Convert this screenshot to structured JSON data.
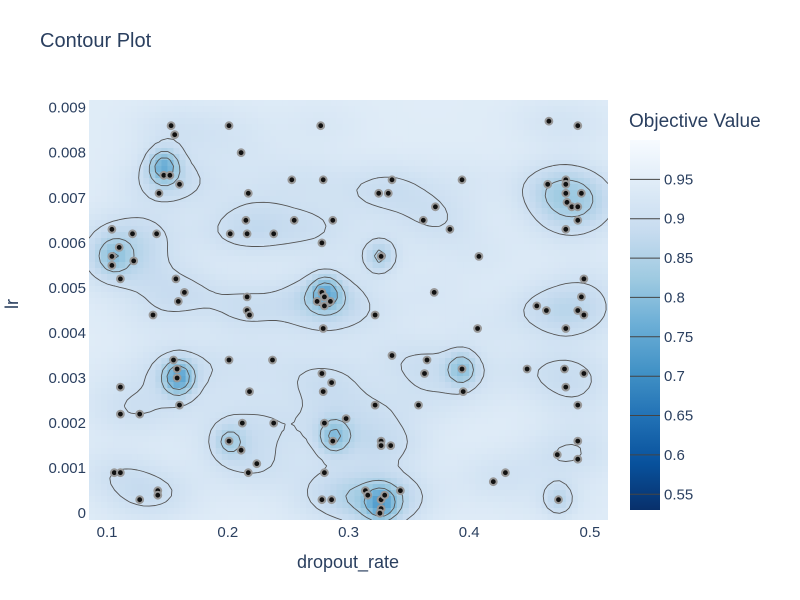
{
  "chart_data": {
    "type": "contour",
    "title": "Contour Plot",
    "xlabel": "dropout_rate",
    "ylabel": "lr",
    "xlim": [
      0.085,
      0.515
    ],
    "ylim": [
      -0.00015,
      0.00917
    ],
    "x_ticks": [
      {
        "value": 0.1,
        "label": "0.1"
      },
      {
        "value": 0.2,
        "label": "0.2"
      },
      {
        "value": 0.3,
        "label": "0.3"
      },
      {
        "value": 0.4,
        "label": "0.4"
      },
      {
        "value": 0.5,
        "label": "0.5"
      }
    ],
    "y_ticks": [
      {
        "value": 0,
        "label": "0"
      },
      {
        "value": 0.001,
        "label": "0.001"
      },
      {
        "value": 0.002,
        "label": "0.002"
      },
      {
        "value": 0.003,
        "label": "0.003"
      },
      {
        "value": 0.004,
        "label": "0.004"
      },
      {
        "value": 0.005,
        "label": "0.005"
      },
      {
        "value": 0.006,
        "label": "0.006"
      },
      {
        "value": 0.007,
        "label": "0.007"
      },
      {
        "value": 0.008,
        "label": "0.008"
      },
      {
        "value": 0.009,
        "label": "0.009"
      }
    ],
    "colorbar": {
      "title": "Objective Value",
      "colorscale": "Blues",
      "range": [
        0.53,
        1.0
      ],
      "ticks": [
        0.95,
        0.9,
        0.85,
        0.8,
        0.75,
        0.7,
        0.65,
        0.6,
        0.55
      ],
      "tick_labels": [
        "0.95",
        "0.9",
        "0.85",
        "0.8",
        "0.75",
        "0.7",
        "0.65",
        "0.6",
        "0.55"
      ]
    },
    "trials": [
      {
        "x": 0.153,
        "y": 0.0086
      },
      {
        "x": 0.156,
        "y": 0.0084
      },
      {
        "x": 0.201,
        "y": 0.0086
      },
      {
        "x": 0.277,
        "y": 0.0086
      },
      {
        "x": 0.466,
        "y": 0.0087
      },
      {
        "x": 0.49,
        "y": 0.0086
      },
      {
        "x": 0.211,
        "y": 0.008
      },
      {
        "x": 0.147,
        "y": 0.0075
      },
      {
        "x": 0.152,
        "y": 0.0075
      },
      {
        "x": 0.16,
        "y": 0.0073
      },
      {
        "x": 0.143,
        "y": 0.0071
      },
      {
        "x": 0.217,
        "y": 0.0071
      },
      {
        "x": 0.253,
        "y": 0.0074
      },
      {
        "x": 0.279,
        "y": 0.0074
      },
      {
        "x": 0.325,
        "y": 0.0071
      },
      {
        "x": 0.333,
        "y": 0.0071
      },
      {
        "x": 0.336,
        "y": 0.0074
      },
      {
        "x": 0.394,
        "y": 0.0074
      },
      {
        "x": 0.465,
        "y": 0.0073
      },
      {
        "x": 0.48,
        "y": 0.0074
      },
      {
        "x": 0.48,
        "y": 0.0073
      },
      {
        "x": 0.48,
        "y": 0.0071
      },
      {
        "x": 0.481,
        "y": 0.0069
      },
      {
        "x": 0.485,
        "y": 0.0068
      },
      {
        "x": 0.49,
        "y": 0.0068
      },
      {
        "x": 0.493,
        "y": 0.0071
      },
      {
        "x": 0.372,
        "y": 0.0068
      },
      {
        "x": 0.362,
        "y": 0.0065
      },
      {
        "x": 0.255,
        "y": 0.0065
      },
      {
        "x": 0.287,
        "y": 0.0065
      },
      {
        "x": 0.215,
        "y": 0.0065
      },
      {
        "x": 0.49,
        "y": 0.0065
      },
      {
        "x": 0.104,
        "y": 0.0063
      },
      {
        "x": 0.121,
        "y": 0.0062
      },
      {
        "x": 0.141,
        "y": 0.0062
      },
      {
        "x": 0.202,
        "y": 0.0062
      },
      {
        "x": 0.216,
        "y": 0.0062
      },
      {
        "x": 0.238,
        "y": 0.0062
      },
      {
        "x": 0.384,
        "y": 0.0063
      },
      {
        "x": 0.48,
        "y": 0.0063
      },
      {
        "x": 0.11,
        "y": 0.0059
      },
      {
        "x": 0.278,
        "y": 0.006
      },
      {
        "x": 0.104,
        "y": 0.0057
      },
      {
        "x": 0.104,
        "y": 0.0055
      },
      {
        "x": 0.122,
        "y": 0.0056
      },
      {
        "x": 0.327,
        "y": 0.0057
      },
      {
        "x": 0.408,
        "y": 0.0057
      },
      {
        "x": 0.111,
        "y": 0.0052
      },
      {
        "x": 0.157,
        "y": 0.0052
      },
      {
        "x": 0.495,
        "y": 0.0052
      },
      {
        "x": 0.164,
        "y": 0.0049
      },
      {
        "x": 0.159,
        "y": 0.0047
      },
      {
        "x": 0.216,
        "y": 0.0048
      },
      {
        "x": 0.278,
        "y": 0.0049
      },
      {
        "x": 0.28,
        "y": 0.0048
      },
      {
        "x": 0.274,
        "y": 0.0047
      },
      {
        "x": 0.285,
        "y": 0.0047
      },
      {
        "x": 0.28,
        "y": 0.0046
      },
      {
        "x": 0.371,
        "y": 0.0049
      },
      {
        "x": 0.493,
        "y": 0.0048
      },
      {
        "x": 0.456,
        "y": 0.0046
      },
      {
        "x": 0.464,
        "y": 0.0045
      },
      {
        "x": 0.216,
        "y": 0.0045
      },
      {
        "x": 0.218,
        "y": 0.0044
      },
      {
        "x": 0.49,
        "y": 0.0045
      },
      {
        "x": 0.495,
        "y": 0.0044
      },
      {
        "x": 0.138,
        "y": 0.0044
      },
      {
        "x": 0.322,
        "y": 0.0044
      },
      {
        "x": 0.279,
        "y": 0.0041
      },
      {
        "x": 0.407,
        "y": 0.0041
      },
      {
        "x": 0.48,
        "y": 0.0041
      },
      {
        "x": 0.237,
        "y": 0.0034
      },
      {
        "x": 0.201,
        "y": 0.0034
      },
      {
        "x": 0.155,
        "y": 0.0034
      },
      {
        "x": 0.336,
        "y": 0.0035
      },
      {
        "x": 0.365,
        "y": 0.0034
      },
      {
        "x": 0.363,
        "y": 0.0031
      },
      {
        "x": 0.158,
        "y": 0.0032
      },
      {
        "x": 0.278,
        "y": 0.0031
      },
      {
        "x": 0.158,
        "y": 0.003
      },
      {
        "x": 0.394,
        "y": 0.0032
      },
      {
        "x": 0.448,
        "y": 0.0032
      },
      {
        "x": 0.479,
        "y": 0.0032
      },
      {
        "x": 0.495,
        "y": 0.0031
      },
      {
        "x": 0.111,
        "y": 0.0028
      },
      {
        "x": 0.286,
        "y": 0.0029
      },
      {
        "x": 0.218,
        "y": 0.0027
      },
      {
        "x": 0.279,
        "y": 0.0027
      },
      {
        "x": 0.395,
        "y": 0.0027
      },
      {
        "x": 0.48,
        "y": 0.0028
      },
      {
        "x": 0.16,
        "y": 0.0024
      },
      {
        "x": 0.322,
        "y": 0.0024
      },
      {
        "x": 0.358,
        "y": 0.0024
      },
      {
        "x": 0.49,
        "y": 0.0024
      },
      {
        "x": 0.111,
        "y": 0.0022
      },
      {
        "x": 0.127,
        "y": 0.0022
      },
      {
        "x": 0.298,
        "y": 0.0021
      },
      {
        "x": 0.238,
        "y": 0.002
      },
      {
        "x": 0.212,
        "y": 0.002
      },
      {
        "x": 0.28,
        "y": 0.002
      },
      {
        "x": 0.201,
        "y": 0.0016
      },
      {
        "x": 0.287,
        "y": 0.0016
      },
      {
        "x": 0.327,
        "y": 0.0016
      },
      {
        "x": 0.327,
        "y": 0.0015
      },
      {
        "x": 0.335,
        "y": 0.0015
      },
      {
        "x": 0.211,
        "y": 0.0014
      },
      {
        "x": 0.49,
        "y": 0.0016
      },
      {
        "x": 0.473,
        "y": 0.0013
      },
      {
        "x": 0.224,
        "y": 0.0011
      },
      {
        "x": 0.49,
        "y": 0.0012
      },
      {
        "x": 0.106,
        "y": 0.0009
      },
      {
        "x": 0.111,
        "y": 0.0009
      },
      {
        "x": 0.217,
        "y": 0.0009
      },
      {
        "x": 0.28,
        "y": 0.0009
      },
      {
        "x": 0.43,
        "y": 0.0009
      },
      {
        "x": 0.42,
        "y": 0.0007
      },
      {
        "x": 0.142,
        "y": 0.0005
      },
      {
        "x": 0.142,
        "y": 0.0004
      },
      {
        "x": 0.314,
        "y": 0.0005
      },
      {
        "x": 0.316,
        "y": 0.0004
      },
      {
        "x": 0.327,
        "y": 0.0003
      },
      {
        "x": 0.33,
        "y": 0.0004
      },
      {
        "x": 0.343,
        "y": 0.0005
      },
      {
        "x": 0.278,
        "y": 0.0003
      },
      {
        "x": 0.286,
        "y": 0.0003
      },
      {
        "x": 0.127,
        "y": 0.0003
      },
      {
        "x": 0.474,
        "y": 0.0003
      },
      {
        "x": 0.327,
        "y": 0.0001
      },
      {
        "x": 0.326,
        "y": 0.0
      }
    ],
    "minima": [
      {
        "x": 0.147,
        "y": 0.0077,
        "value": 0.8
      },
      {
        "x": 0.159,
        "y": 0.003,
        "value": 0.78
      },
      {
        "x": 0.281,
        "y": 0.0049,
        "value": 0.82
      },
      {
        "x": 0.326,
        "y": 0.0057,
        "value": 0.86
      },
      {
        "x": 0.288,
        "y": 0.0017,
        "value": 0.84
      },
      {
        "x": 0.394,
        "y": 0.0032,
        "value": 0.84
      },
      {
        "x": 0.327,
        "y": 0.0002,
        "value": 0.82
      },
      {
        "x": 0.201,
        "y": 0.0016,
        "value": 0.88
      },
      {
        "x": 0.105,
        "y": 0.0057,
        "value": 0.88
      },
      {
        "x": 0.474,
        "y": 0.0003,
        "value": 0.88
      }
    ],
    "grid": false,
    "legend": "colorbar-right"
  }
}
